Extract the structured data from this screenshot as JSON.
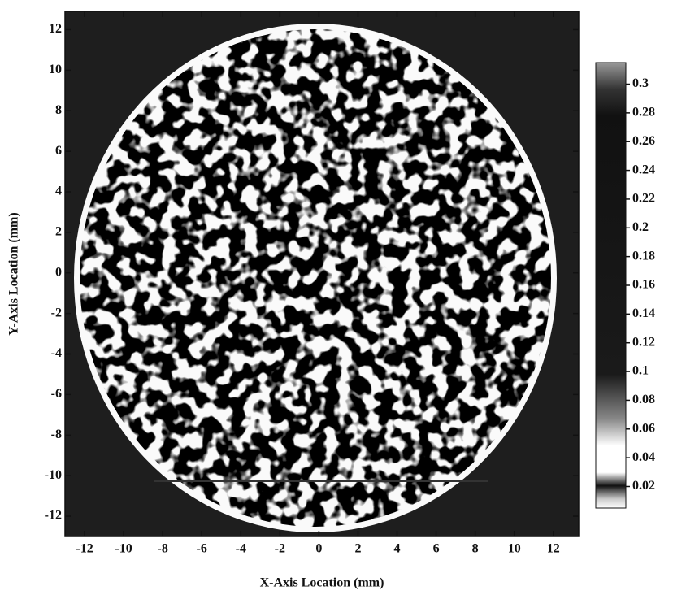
{
  "chart_data": {
    "type": "heatmap",
    "xlabel": "X-Axis Location (mm)",
    "ylabel": "Y-Axis Location (mm)",
    "xlim": [
      -13,
      13.3
    ],
    "ylim": [
      -13,
      12.9
    ],
    "xticks": [
      -12,
      -10,
      -8,
      -6,
      -4,
      -2,
      0,
      2,
      4,
      6,
      8,
      10,
      12
    ],
    "yticks": [
      -12,
      -10,
      -8,
      -6,
      -4,
      -2,
      0,
      2,
      4,
      6,
      8,
      10,
      12
    ],
    "clim": [
      0.005,
      0.315
    ],
    "cticks": [
      0.02,
      0.04,
      0.06,
      0.08,
      0.1,
      0.12,
      0.14,
      0.16,
      0.18,
      0.2,
      0.22,
      0.24,
      0.26,
      0.28,
      0.3
    ]
  }
}
